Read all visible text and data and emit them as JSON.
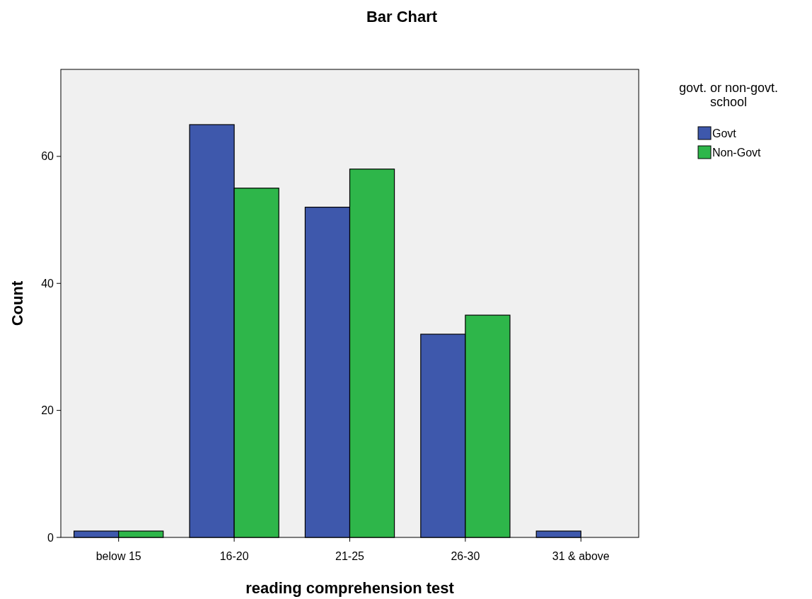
{
  "chart_data": {
    "type": "bar",
    "title": "Bar Chart",
    "xlabel": "reading comprehension test",
    "ylabel": "Count",
    "legend_title": "govt. or non-govt. school",
    "categories": [
      "below 15",
      "16-20",
      "21-25",
      "26-30",
      "31 & above"
    ],
    "series": [
      {
        "name": "Govt",
        "color": "#3e58ac",
        "values": [
          1,
          65,
          52,
          32,
          1
        ]
      },
      {
        "name": "Non-Govt",
        "color": "#2eb64a",
        "values": [
          1,
          55,
          58,
          35,
          null
        ]
      }
    ],
    "ylim": [
      0,
      73.7
    ],
    "yticks": [
      0,
      20,
      40,
      60
    ],
    "grid": false,
    "legend": "top right"
  }
}
